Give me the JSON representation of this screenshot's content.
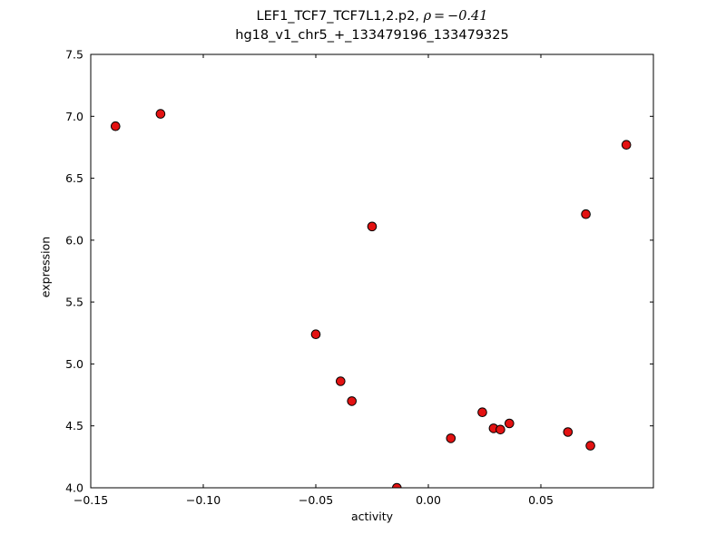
{
  "figure": {
    "title_prefix": "LEF1_TCF7_TCF7L1,2.p2, ",
    "title_rho": "ρ = −0.41",
    "title_line2": "hg18_v1_chr5_+_133479196_133479325"
  },
  "chart_data": {
    "type": "scatter",
    "title": "LEF1_TCF7_TCF7L1,2.p2, ρ=−0.41\nhg18_v1_chr5_+_133479196_133479325",
    "xlabel": "activity",
    "ylabel": "expression",
    "xlim": [
      -0.15,
      0.1
    ],
    "ylim": [
      4.0,
      7.5
    ],
    "xticks": [
      -0.15,
      -0.1,
      -0.05,
      0.0,
      0.05
    ],
    "xtick_labels": [
      "−0.15",
      "−0.10",
      "−0.05",
      "0.00",
      "0.05"
    ],
    "yticks": [
      4.0,
      4.5,
      5.0,
      5.5,
      6.0,
      6.5,
      7.0,
      7.5
    ],
    "ytick_labels": [
      "4.0",
      "4.5",
      "5.0",
      "5.5",
      "6.0",
      "6.5",
      "7.0",
      "7.5"
    ],
    "grid": false,
    "legend": null,
    "marker": {
      "shape": "circle",
      "fill_color": "#e31212",
      "edge_color": "#000000",
      "radius_px": 4.8
    },
    "points": [
      [
        -0.139,
        6.92
      ],
      [
        -0.119,
        7.02
      ],
      [
        -0.05,
        5.24
      ],
      [
        -0.039,
        4.86
      ],
      [
        -0.034,
        4.7
      ],
      [
        -0.025,
        6.11
      ],
      [
        -0.014,
        4.0
      ],
      [
        0.01,
        4.4
      ],
      [
        0.024,
        4.61
      ],
      [
        0.029,
        4.48
      ],
      [
        0.032,
        4.47
      ],
      [
        0.036,
        4.52
      ],
      [
        0.062,
        4.45
      ],
      [
        0.07,
        6.21
      ],
      [
        0.072,
        4.34
      ],
      [
        0.088,
        6.77
      ]
    ]
  }
}
